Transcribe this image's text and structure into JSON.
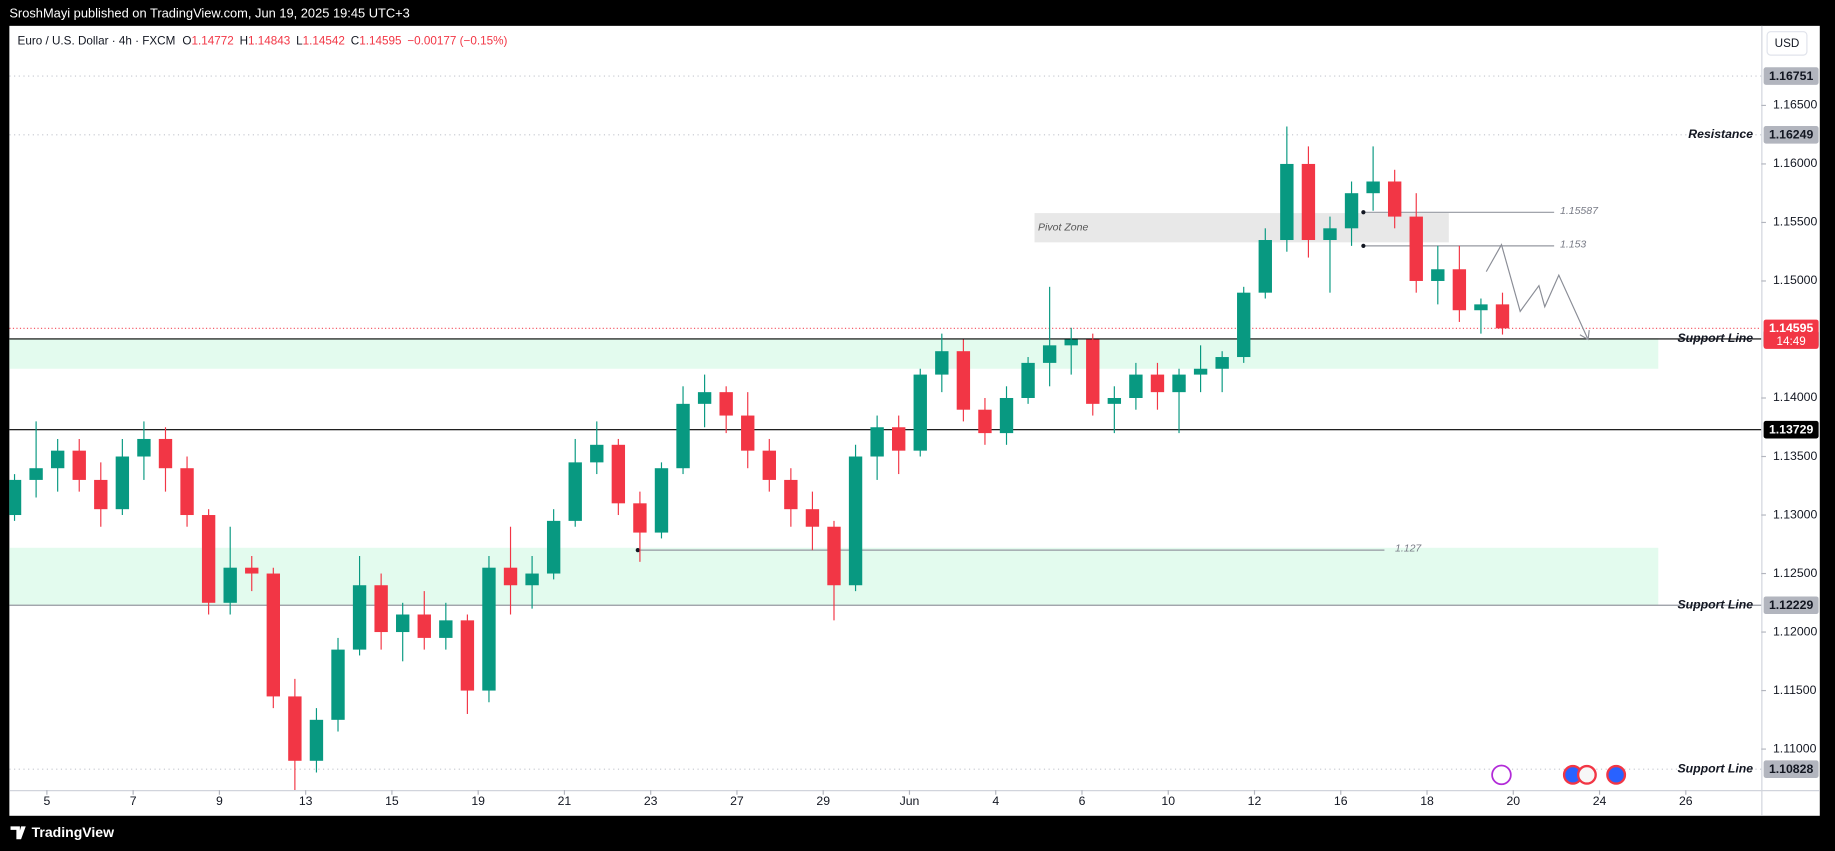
{
  "header": {
    "publisher": "SroshMayi published on TradingView.com, Jun 19, 2025 19:45 UTC+3"
  },
  "footer": {
    "brand": "TradingView"
  },
  "chart_data": {
    "type": "candlestick",
    "title": "Euro / U.S. Dollar · 4h · FXCM",
    "ohlc": [
      {
        "key": "O",
        "value": 1.14772
      },
      {
        "key": "H",
        "value": 1.14843
      },
      {
        "key": "L",
        "value": 1.14542
      },
      {
        "key": "C",
        "value": 1.14595
      }
    ],
    "change": "−0.00177 (−0.15%)",
    "currency": "USD",
    "up_color": "#089981",
    "down_color": "#f23645",
    "grid": false,
    "xlim": [
      0.26,
      81.5
    ],
    "xticks": [
      {
        "value": 2,
        "label": "5"
      },
      {
        "value": 6,
        "label": "7"
      },
      {
        "value": 10,
        "label": "9"
      },
      {
        "value": 14,
        "label": "13"
      },
      {
        "value": 18,
        "label": "15"
      },
      {
        "value": 22,
        "label": "19"
      },
      {
        "value": 26,
        "label": "21"
      },
      {
        "value": 30,
        "label": "23"
      },
      {
        "value": 34,
        "label": "27"
      },
      {
        "value": 38,
        "label": "29"
      },
      {
        "value": 42,
        "label": "Jun"
      },
      {
        "value": 46,
        "label": "4"
      },
      {
        "value": 50,
        "label": "6"
      },
      {
        "value": 54,
        "label": "10"
      },
      {
        "value": 58,
        "label": "12"
      },
      {
        "value": 62,
        "label": "16"
      },
      {
        "value": 66,
        "label": "18"
      },
      {
        "value": 70,
        "label": "20"
      },
      {
        "value": 74,
        "label": "24"
      },
      {
        "value": 78,
        "label": "26"
      }
    ],
    "ylim": [
      1.1065,
      1.1718
    ],
    "yticks": [
      {
        "value": 1.165,
        "label": "1.16500"
      },
      {
        "value": 1.16,
        "label": "1.16000"
      },
      {
        "value": 1.155,
        "label": "1.15500"
      },
      {
        "value": 1.15,
        "label": "1.15000"
      },
      {
        "value": 1.14,
        "label": "1.14000"
      },
      {
        "value": 1.135,
        "label": "1.13500"
      },
      {
        "value": 1.13,
        "label": "1.13000"
      },
      {
        "value": 1.125,
        "label": "1.12500"
      },
      {
        "value": 1.12,
        "label": "1.12000"
      },
      {
        "value": 1.115,
        "label": "1.11500"
      },
      {
        "value": 1.11,
        "label": "1.11000"
      }
    ],
    "open": [
      1.13,
      1.133,
      1.134,
      1.1355,
      1.133,
      1.1305,
      1.135,
      1.1365,
      1.134,
      1.13,
      1.1225,
      1.1255,
      1.125,
      1.1145,
      1.109,
      1.1125,
      1.1185,
      1.124,
      1.12,
      1.1215,
      1.1195,
      1.121,
      1.115,
      1.1255,
      1.124,
      1.125,
      1.1295,
      1.1345,
      1.136,
      1.131,
      1.1285,
      1.134,
      1.1395,
      1.1405,
      1.1385,
      1.1355,
      1.133,
      1.1305,
      1.129,
      1.124,
      1.135,
      1.1375,
      1.1355,
      1.142,
      1.144,
      1.139,
      1.137,
      1.14,
      1.143,
      1.1445,
      1.145,
      1.1395,
      1.14,
      1.142,
      1.1405,
      1.142,
      1.1425,
      1.1435,
      1.149,
      1.1535,
      1.16,
      1.1535,
      1.1545,
      1.1575,
      1.1585,
      1.1555,
      1.15,
      1.151,
      1.1475,
      1.148
    ],
    "high": [
      1.1335,
      1.138,
      1.1365,
      1.1365,
      1.1345,
      1.1365,
      1.138,
      1.1375,
      1.135,
      1.1305,
      1.129,
      1.1265,
      1.1255,
      1.116,
      1.1135,
      1.1195,
      1.1265,
      1.125,
      1.1225,
      1.1235,
      1.1225,
      1.1215,
      1.1265,
      1.129,
      1.1265,
      1.1305,
      1.1365,
      1.138,
      1.1365,
      1.132,
      1.1345,
      1.141,
      1.142,
      1.141,
      1.1405,
      1.1365,
      1.134,
      1.132,
      1.1295,
      1.136,
      1.1385,
      1.1385,
      1.1425,
      1.1455,
      1.145,
      1.14,
      1.141,
      1.1435,
      1.1495,
      1.146,
      1.1455,
      1.141,
      1.143,
      1.143,
      1.1425,
      1.1445,
      1.144,
      1.1495,
      1.1545,
      1.1632,
      1.1615,
      1.1555,
      1.1585,
      1.1615,
      1.1595,
      1.1575,
      1.153,
      1.153,
      1.1485,
      1.149
    ],
    "low": [
      1.1295,
      1.1315,
      1.132,
      1.132,
      1.129,
      1.13,
      1.133,
      1.132,
      1.129,
      1.1215,
      1.1215,
      1.1235,
      1.1135,
      1.1065,
      1.108,
      1.1115,
      1.118,
      1.1185,
      1.1175,
      1.1185,
      1.1185,
      1.113,
      1.114,
      1.1215,
      1.122,
      1.1245,
      1.129,
      1.1335,
      1.13,
      1.126,
      1.128,
      1.1335,
      1.1375,
      1.137,
      1.134,
      1.132,
      1.129,
      1.127,
      1.121,
      1.1235,
      1.133,
      1.1335,
      1.135,
      1.1405,
      1.138,
      1.136,
      1.136,
      1.1395,
      1.141,
      1.142,
      1.1385,
      1.137,
      1.139,
      1.139,
      1.137,
      1.1405,
      1.1405,
      1.143,
      1.1485,
      1.1525,
      1.152,
      1.149,
      1.153,
      1.156,
      1.1545,
      1.149,
      1.148,
      1.1465,
      1.1455,
      1.14542
    ],
    "close": [
      1.133,
      1.134,
      1.1355,
      1.133,
      1.1305,
      1.135,
      1.1365,
      1.134,
      1.13,
      1.1225,
      1.1255,
      1.125,
      1.1145,
      1.109,
      1.1125,
      1.1185,
      1.124,
      1.12,
      1.1215,
      1.1195,
      1.121,
      1.115,
      1.1255,
      1.124,
      1.125,
      1.1295,
      1.1345,
      1.136,
      1.131,
      1.1285,
      1.134,
      1.1395,
      1.1405,
      1.1385,
      1.1355,
      1.133,
      1.1305,
      1.129,
      1.124,
      1.135,
      1.1375,
      1.1355,
      1.142,
      1.144,
      1.139,
      1.137,
      1.14,
      1.143,
      1.1445,
      1.145,
      1.1395,
      1.14,
      1.142,
      1.1405,
      1.142,
      1.1425,
      1.1435,
      1.149,
      1.1535,
      1.16,
      1.1535,
      1.1545,
      1.1575,
      1.1585,
      1.1555,
      1.15,
      1.151,
      1.1475,
      1.148,
      1.14595
    ],
    "last": {
      "value": 1.14595,
      "countdown": "14:49",
      "color": "#f23645"
    },
    "levels": [
      {
        "value": 1.16751,
        "style": "dotted",
        "color": "#b2b5be"
      },
      {
        "name": "Resistance",
        "value": 1.16249,
        "style": "dotted",
        "color": "#b2b5be"
      },
      {
        "name": "Support Line",
        "value": 1.14505,
        "style": "solid",
        "color": "#000000"
      },
      {
        "value": 1.13729,
        "style": "solid",
        "color": "#000000"
      },
      {
        "name": "Support Line",
        "value": 1.12229,
        "style": "solid",
        "color": "#b2b5be"
      },
      {
        "name": "Support Line",
        "value": 1.10828,
        "style": "dotted",
        "color": "#b2b5be"
      }
    ],
    "zones": [
      {
        "from": 1.1425,
        "to": 1.1451,
        "color": "#e3fbee"
      },
      {
        "from": 1.1223,
        "to": 1.1272,
        "color": "#e3fbee"
      }
    ],
    "pivot_zone": {
      "label": "Pivot Zone",
      "from": 1.1533,
      "to": 1.1558,
      "color": "#e8e8e8"
    },
    "marked_levels": [
      {
        "value": 1.15587
      },
      {
        "value": 1.153
      },
      {
        "value": 1.127
      }
    ]
  }
}
